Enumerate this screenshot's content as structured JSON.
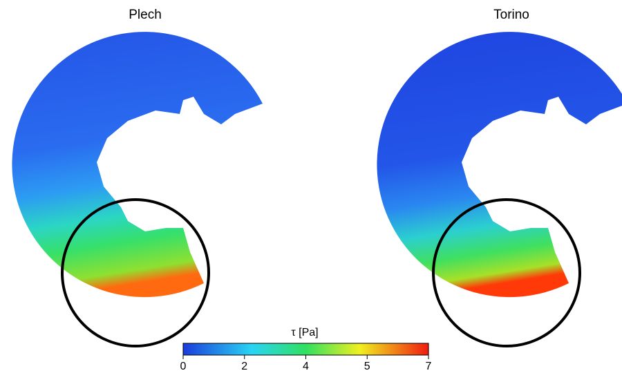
{
  "panels": [
    {
      "title": "Plech"
    },
    {
      "title": "Torino"
    }
  ],
  "colorbar": {
    "label": "τ [Pa]",
    "ticks": [
      0,
      2,
      4,
      5,
      7
    ]
  }
}
